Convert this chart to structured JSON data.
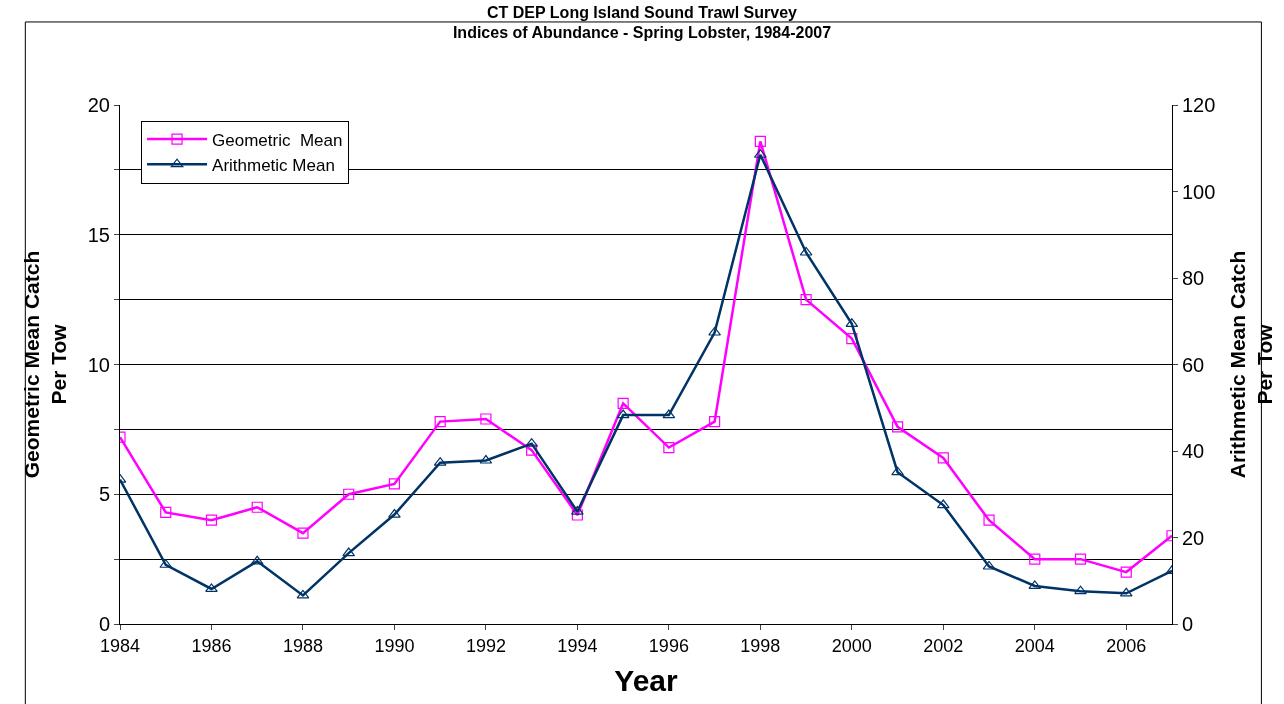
{
  "chart_data": {
    "type": "line",
    "title": "CT DEP Long Island Sound Trawl Survey\nIndices of Abundance - Spring Lobster, 1984-2007",
    "xlabel": "Year",
    "ylabel": "Geometric Mean Catch\nPer Tow",
    "y2label": "Arithmetic Mean Catch\nPer Tow",
    "x": [
      1984,
      1985,
      1986,
      1987,
      1988,
      1989,
      1990,
      1991,
      1992,
      1993,
      1994,
      1995,
      1996,
      1997,
      1998,
      1999,
      2000,
      2001,
      2002,
      2003,
      2004,
      2005,
      2006,
      2007
    ],
    "series": [
      {
        "name": "Geometric  Mean",
        "color": "#ff00ff",
        "marker": "square",
        "values": [
          7.2,
          4.3,
          4.0,
          4.5,
          3.5,
          5.0,
          5.4,
          7.8,
          7.9,
          6.7,
          4.2,
          8.5,
          6.8,
          7.8,
          18.6,
          12.5,
          11.0,
          7.6,
          6.4,
          4.0,
          2.5,
          2.5,
          2.0,
          3.4
        ]
      },
      {
        "name": "Arithmetic Mean",
        "color": "#003366",
        "marker": "triangle",
        "axis": "y2",
        "values": [
          33.4,
          13.7,
          8.1,
          14.5,
          6.6,
          16.4,
          25.3,
          37.3,
          37.8,
          41.7,
          26.0,
          48.3,
          48.3,
          67.4,
          108.5,
          85.9,
          69.4,
          35.1,
          27.5,
          13.3,
          8.8,
          7.6,
          7.1,
          12.3
        ]
      }
    ],
    "xlim": [
      1984,
      2007
    ],
    "xticks": [
      1984,
      1986,
      1988,
      1990,
      1992,
      1994,
      1996,
      1998,
      2000,
      2002,
      2004,
      2006
    ],
    "ylim": [
      0,
      20
    ],
    "yticks": [
      0,
      {
        "value": 2.5,
        "label": null
      },
      5,
      {
        "value": 7.5,
        "label": null
      },
      10,
      {
        "value": 12.5,
        "label": null
      },
      15,
      {
        "value": 17.5,
        "label": null
      },
      20
    ],
    "y2lim": [
      0,
      120
    ],
    "y2ticks": [
      0,
      20,
      40,
      60,
      80,
      100,
      120
    ],
    "grid": "y",
    "legend": "top left",
    "line_style": "solid"
  }
}
